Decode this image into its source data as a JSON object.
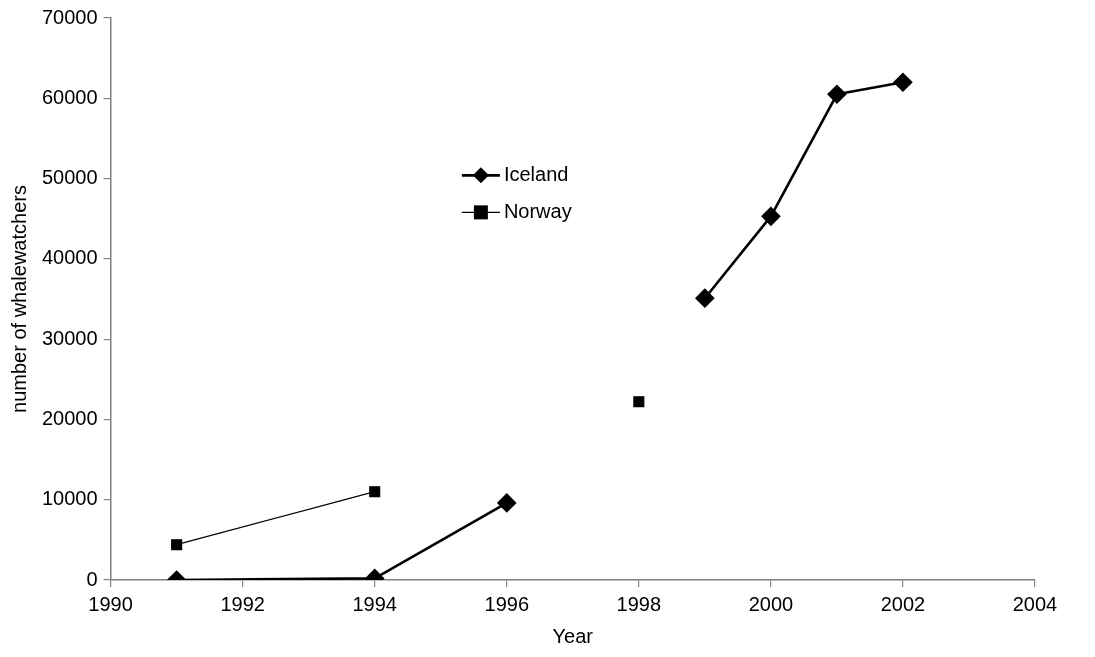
{
  "chart_data": {
    "type": "line",
    "xlabel": "Year",
    "ylabel": "number of whalewatchers",
    "xlim": [
      1990,
      2004
    ],
    "xticks": [
      1990,
      1992,
      1994,
      1996,
      1998,
      2000,
      2002,
      2004
    ],
    "ylim": [
      0,
      70000
    ],
    "yticks": [
      0,
      10000,
      20000,
      30000,
      40000,
      50000,
      60000,
      70000
    ],
    "grid": false,
    "legend": "top",
    "series": [
      {
        "name": "Iceland",
        "color": "#000000",
        "marker": "diamond",
        "x": [
          1991,
          1994,
          1996,
          1997,
          1999,
          2000,
          2001,
          2002
        ],
        "values": [
          0,
          200,
          9600,
          null,
          35100,
          45300,
          60500,
          62000
        ]
      },
      {
        "name": "Norway",
        "color": "#000000",
        "marker": "square",
        "x": [
          1991,
          1994,
          1996,
          1998
        ],
        "values": [
          4400,
          11000,
          null,
          22200
        ]
      }
    ]
  }
}
